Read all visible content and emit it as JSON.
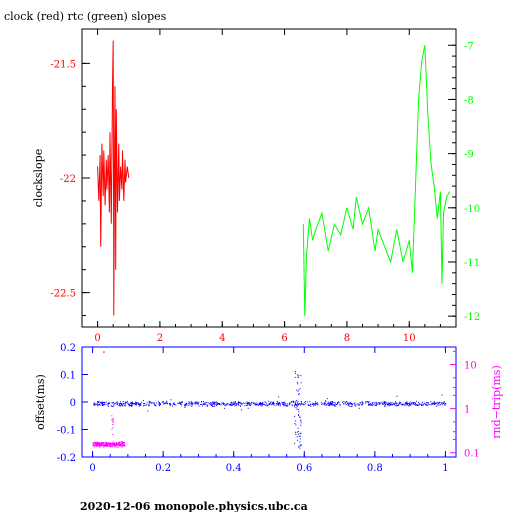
{
  "chart_data": [
    {
      "type": "line",
      "title": "clock (red) rtc (green) slopes",
      "ylabel": "clockslope",
      "xlim": [
        -0.5,
        11.5
      ],
      "ylim_left": [
        -22.65,
        -21.35
      ],
      "ylim_right": [
        -12.2,
        -6.7
      ],
      "x_ticks": [
        "0",
        "2",
        "4",
        "6",
        "8",
        "10"
      ],
      "y_left_ticks": [
        "-21.5",
        "-22",
        "-22.5"
      ],
      "y_right_ticks": [
        "-7",
        "-8",
        "-9",
        "-10",
        "-11",
        "-12"
      ],
      "colors": {
        "frame": "#000000",
        "left_axis": "#ff0000",
        "right_axis": "#00ff00"
      },
      "series": [
        {
          "name": "clock",
          "color": "#ff0000",
          "axis": "left",
          "x": [
            0.0,
            0.04,
            0.08,
            0.1,
            0.14,
            0.18,
            0.2,
            0.24,
            0.28,
            0.3,
            0.34,
            0.38,
            0.4,
            0.44,
            0.48,
            0.5,
            0.52,
            0.54,
            0.56,
            0.58,
            0.6,
            0.64,
            0.68,
            0.7,
            0.74,
            0.78,
            0.8,
            0.84,
            0.88,
            0.9,
            0.95,
            1.0
          ],
          "y": [
            -21.95,
            -22.1,
            -21.9,
            -22.3,
            -21.85,
            -22.08,
            -21.88,
            -22.12,
            -21.92,
            -22.05,
            -21.9,
            -22.15,
            -21.8,
            -22.2,
            -21.6,
            -21.4,
            -22.6,
            -22.0,
            -21.6,
            -22.4,
            -21.7,
            -22.15,
            -21.85,
            -22.1,
            -21.95,
            -22.05,
            -21.88,
            -22.1,
            -21.92,
            -22.02,
            -21.95,
            -22.0
          ]
        },
        {
          "name": "rtc",
          "color": "#00ff00",
          "axis": "right",
          "x": [
            6.6,
            6.65,
            6.7,
            6.8,
            6.9,
            7.0,
            7.2,
            7.4,
            7.6,
            7.8,
            8.0,
            8.2,
            8.3,
            8.5,
            8.7,
            8.9,
            9.0,
            9.2,
            9.4,
            9.6,
            9.8,
            10.0,
            10.1,
            10.2,
            10.3,
            10.4,
            10.5,
            10.6,
            10.7,
            10.8,
            10.9,
            11.0,
            11.05,
            11.1,
            11.2,
            11.3
          ],
          "y": [
            -10.3,
            -12.0,
            -10.9,
            -10.2,
            -10.6,
            -10.4,
            -10.1,
            -10.8,
            -10.3,
            -10.5,
            -10.0,
            -10.4,
            -9.8,
            -10.3,
            -10.0,
            -10.8,
            -10.4,
            -10.7,
            -11.0,
            -10.4,
            -11.0,
            -10.6,
            -11.2,
            -9.6,
            -8.0,
            -7.3,
            -7.0,
            -8.3,
            -9.2,
            -9.6,
            -10.2,
            -9.7,
            -11.4,
            -10.1,
            -9.8,
            -9.7
          ]
        }
      ]
    },
    {
      "type": "scatter",
      "ylabel": "offset(ms)",
      "ylabel_right": "rnd−trip(ms)",
      "xlim": [
        -0.03,
        1.03
      ],
      "ylim_left": [
        -0.2,
        0.2
      ],
      "ylim_right_log": [
        0.08,
        25
      ],
      "x_ticks": [
        "0",
        "0.2",
        "0.4",
        "0.6",
        "0.8",
        "1"
      ],
      "y_left_ticks": [
        "0.2",
        "0.1",
        "0",
        "-0.1",
        "-0.2"
      ],
      "y_right_ticks": [
        "0.1",
        "1",
        "10"
      ],
      "colors": {
        "frame": "#0000ff",
        "right_axis": "#ff00ff"
      },
      "series": [
        {
          "name": "offset",
          "color": "#0000ff",
          "axis": "left",
          "x_range": [
            0,
            1
          ],
          "level": -0.005,
          "spread": 0.01,
          "glitch_x": 0.58,
          "glitch_range": [
            -0.17,
            0.12
          ]
        },
        {
          "name": "rnd-trip",
          "color": "#ff00ff",
          "axis": "right",
          "x_range": [
            0,
            0.09
          ],
          "level": 0.16,
          "spread": 0.025,
          "outlier_x": 0.03,
          "outlier_y": 20
        }
      ]
    }
  ],
  "footer": {
    "text": "2020-12-06  monopole.physics.ubc.ca"
  }
}
